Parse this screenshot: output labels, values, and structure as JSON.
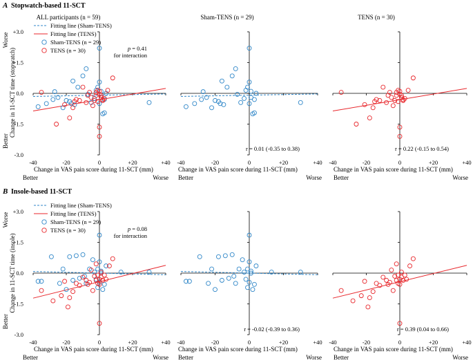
{
  "panels": [
    {
      "letter": "A",
      "heading": "Stopwatch-based 11-SCT",
      "ylabel": "Change in 11-SCT time (stopwatch)",
      "interaction_p": "0.41",
      "interaction_note": "for interaction"
    },
    {
      "letter": "B",
      "heading": "Insole-based 11-SCT",
      "ylabel": "Change in 11-SCT time (insole)",
      "interaction_p": "0.08",
      "interaction_note": "for interaction"
    }
  ],
  "common": {
    "p_label": "p",
    "p_eq": " = ",
    "xlabel": "Change in VAS pain score during 11-SCT (mm)",
    "x_better": "Better",
    "x_worse": "Worse",
    "y_worse": "Worse",
    "y_better": "Better",
    "subplot_titles": [
      "ALL participants (n = 59)",
      "Sham-TENS (n = 29)",
      "TENS (n = 30)"
    ],
    "legend": {
      "fit_sham": "Fitting line (Sham-TENS)",
      "fit_tens": "Fitting line (TENS)",
      "sham": "Sham-TENS (n = 29)",
      "tens": "TENS (n = 30)"
    },
    "x_ticks": [
      "-40",
      "-20",
      "0",
      "+20",
      "+40"
    ],
    "y_ticks": [
      "+3.0",
      "+1.5",
      "0.0",
      "-1.5",
      "-3.0"
    ]
  },
  "colors": {
    "sham": "#2e86c8",
    "tens": "#e8262b",
    "axis": "#000000"
  },
  "chart_data": [
    {
      "type": "scatter",
      "title": "Stopwatch-based 11-SCT",
      "xlabel": "Change in VAS pain score during 11-SCT (mm)",
      "ylabel": "Change in 11-SCT time (stopwatch)",
      "xlim": [
        -40,
        40
      ],
      "ylim": [
        -3,
        3
      ],
      "x_tick_values": [
        -40,
        -20,
        0,
        20,
        40
      ],
      "y_tick_values": [
        3,
        1.5,
        0,
        -1.5,
        -3
      ],
      "stats": {
        "sham": "r = 0.01 (-0.35 to 0.38)",
        "tens": "r = 0.22 (-0.15 to 0.54)"
      },
      "fit_lines": {
        "sham": {
          "x": [
            -40,
            40
          ],
          "y": [
            -0.15,
            -0.03
          ]
        },
        "tens": {
          "x": [
            -40,
            40
          ],
          "y": [
            -0.86,
            0.24
          ]
        }
      },
      "series": [
        {
          "name": "Sham-TENS (n = 29)",
          "group": "sham",
          "x": [
            -37,
            -32,
            -28,
            -27,
            -25,
            -22,
            -20,
            -18,
            -17,
            -16,
            -15,
            -13,
            -10,
            -8,
            -7,
            -5,
            -3,
            -2,
            -1,
            0,
            0,
            0,
            1,
            1,
            2,
            3,
            3,
            4,
            30
          ],
          "y": [
            -0.65,
            -0.5,
            -0.3,
            0.08,
            -0.2,
            -0.7,
            -0.35,
            -0.4,
            -0.5,
            0.6,
            -0.55,
            0.3,
            0.85,
            1.2,
            -0.05,
            -0.45,
            -0.25,
            0.15,
            0.3,
            -0.5,
            0.55,
            2.2,
            -0.2,
            0.1,
            -1.0,
            -0.3,
            -0.95,
            0.0,
            -0.45
          ]
        },
        {
          "name": "TENS (n = 30)",
          "group": "tens",
          "x": [
            -35,
            -26,
            -21,
            -18,
            -16,
            -15,
            -14,
            -12,
            -10,
            -8,
            -7,
            -6,
            -5,
            -4,
            -3,
            -2,
            -2,
            -1,
            -1,
            0,
            0,
            0,
            0,
            1,
            1,
            2,
            2,
            3,
            5,
            8
          ],
          "y": [
            0.05,
            -1.5,
            -0.55,
            -1.2,
            -0.7,
            -0.4,
            -0.3,
            -0.35,
            0.3,
            -0.45,
            -0.1,
            0.05,
            -0.2,
            -0.6,
            -0.35,
            -0.1,
            0.05,
            -0.4,
            0.15,
            -0.05,
            0.1,
            -1.65,
            -2.1,
            -0.2,
            -0.1,
            -0.3,
            -0.35,
            -0.25,
            0.15,
            0.75
          ]
        }
      ]
    },
    {
      "type": "scatter",
      "title": "Insole-based 11-SCT",
      "xlabel": "Change in VAS pain score during 11-SCT (mm)",
      "ylabel": "Change in 11-SCT time (insole)",
      "xlim": [
        -40,
        40
      ],
      "ylim": [
        -3,
        3
      ],
      "x_tick_values": [
        -40,
        -20,
        0,
        20,
        40
      ],
      "y_tick_values": [
        3,
        1.5,
        0,
        -1.5,
        -3
      ],
      "stats": {
        "sham": "r = -0.02 (-0.39 to 0.36)",
        "tens": "r = 0.39 (0.04 to 0.66)"
      },
      "fit_lines": {
        "sham": {
          "x": [
            -40,
            40
          ],
          "y": [
            0.08,
            -0.08
          ]
        },
        "tens": {
          "x": [
            -40,
            40
          ],
          "y": [
            -1.22,
            0.38
          ]
        }
      },
      "series": [
        {
          "name": "Sham-TENS (n = 29)",
          "group": "sham",
          "x": [
            -37,
            -35,
            -29,
            -24,
            -22,
            -20,
            -18,
            -16,
            -14,
            -12,
            -10,
            -9,
            -8,
            -6,
            -4,
            -3,
            -2,
            -1,
            -1,
            0,
            0,
            0,
            1,
            1,
            2,
            3,
            4,
            13,
            30
          ],
          "y": [
            -0.4,
            -0.4,
            0.8,
            -0.5,
            0.2,
            -0.8,
            0.8,
            -0.35,
            0.85,
            -0.25,
            0.9,
            -0.15,
            -0.5,
            0.2,
            0.65,
            0.05,
            -0.3,
            0.2,
            -0.7,
            0.55,
            1.85,
            -0.45,
            0.0,
            0.1,
            -0.8,
            -0.55,
            0.35,
            0.05,
            0.05
          ]
        },
        {
          "name": "TENS (n = 30)",
          "group": "tens",
          "x": [
            -35,
            -28,
            -23,
            -21,
            -19,
            -18,
            -16,
            -14,
            -12,
            -10,
            -8,
            -7,
            -6,
            -5,
            -4,
            -3,
            -2,
            -2,
            -1,
            -1,
            0,
            0,
            0,
            1,
            1,
            2,
            3,
            4,
            6,
            8
          ],
          "y": [
            -0.85,
            -1.35,
            -1.1,
            -0.4,
            -1.65,
            -1.2,
            -0.9,
            -0.5,
            -0.6,
            -0.2,
            -0.35,
            -0.55,
            -0.45,
            0.15,
            -0.85,
            -0.15,
            0.45,
            -0.35,
            -0.1,
            -0.5,
            -0.3,
            -0.55,
            -2.45,
            -0.2,
            0.05,
            -0.35,
            -0.1,
            -0.3,
            0.35,
            0.7
          ]
        }
      ]
    }
  ]
}
